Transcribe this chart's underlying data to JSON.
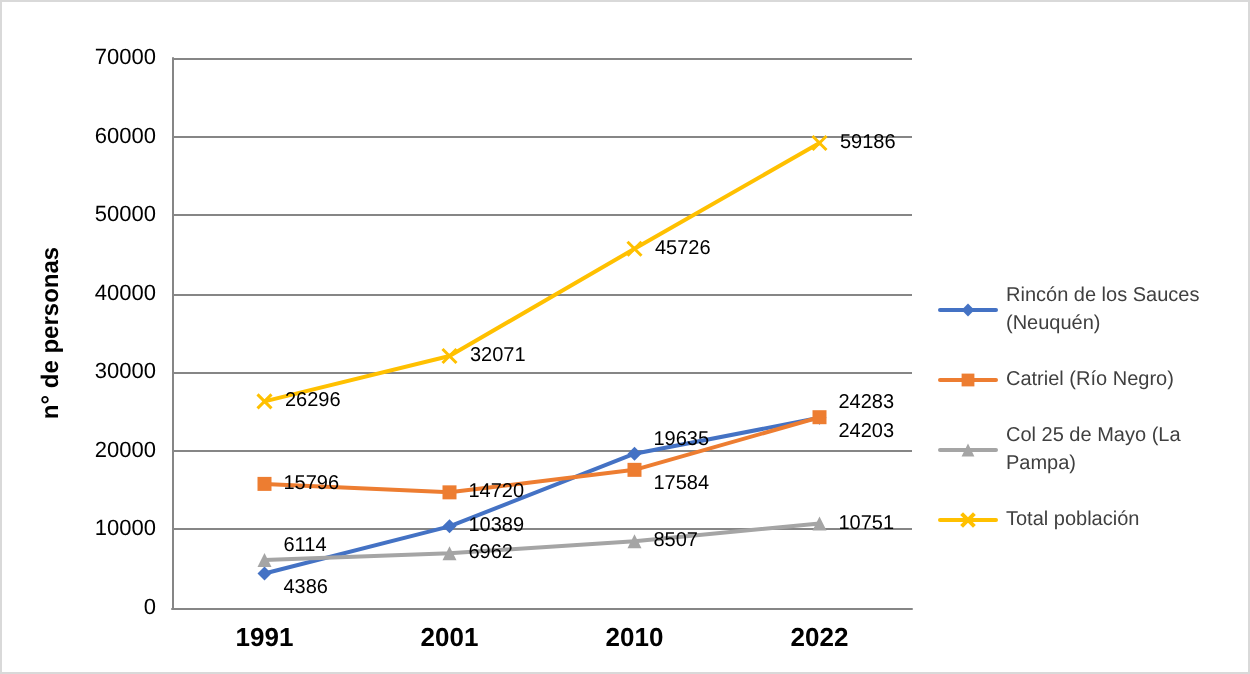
{
  "chart_data": {
    "type": "line",
    "ylabel": "n° de personas",
    "categories": [
      "1991",
      "2001",
      "2010",
      "2022"
    ],
    "series": [
      {
        "name": "Rincón de los Sauces (Neuquén)",
        "color": "#4472c4",
        "marker": "diamond",
        "values": [
          4386,
          10389,
          19635,
          24203
        ]
      },
      {
        "name": "Catriel (Río Negro)",
        "color": "#ed7d31",
        "marker": "square",
        "values": [
          15796,
          14720,
          17584,
          24283
        ]
      },
      {
        "name": "Col 25 de Mayo (La Pampa)",
        "color": "#a5a5a5",
        "marker": "triangle",
        "values": [
          6114,
          6962,
          8507,
          10751
        ]
      },
      {
        "name": "Total población",
        "color": "#ffc000",
        "marker": "cross",
        "values": [
          26296,
          32071,
          45726,
          59186
        ]
      }
    ],
    "ylim": [
      0,
      70000
    ],
    "yticks": [
      0,
      10000,
      20000,
      30000,
      40000,
      50000,
      60000,
      70000
    ],
    "grid": "y",
    "legend": "right",
    "data_labels": true
  }
}
